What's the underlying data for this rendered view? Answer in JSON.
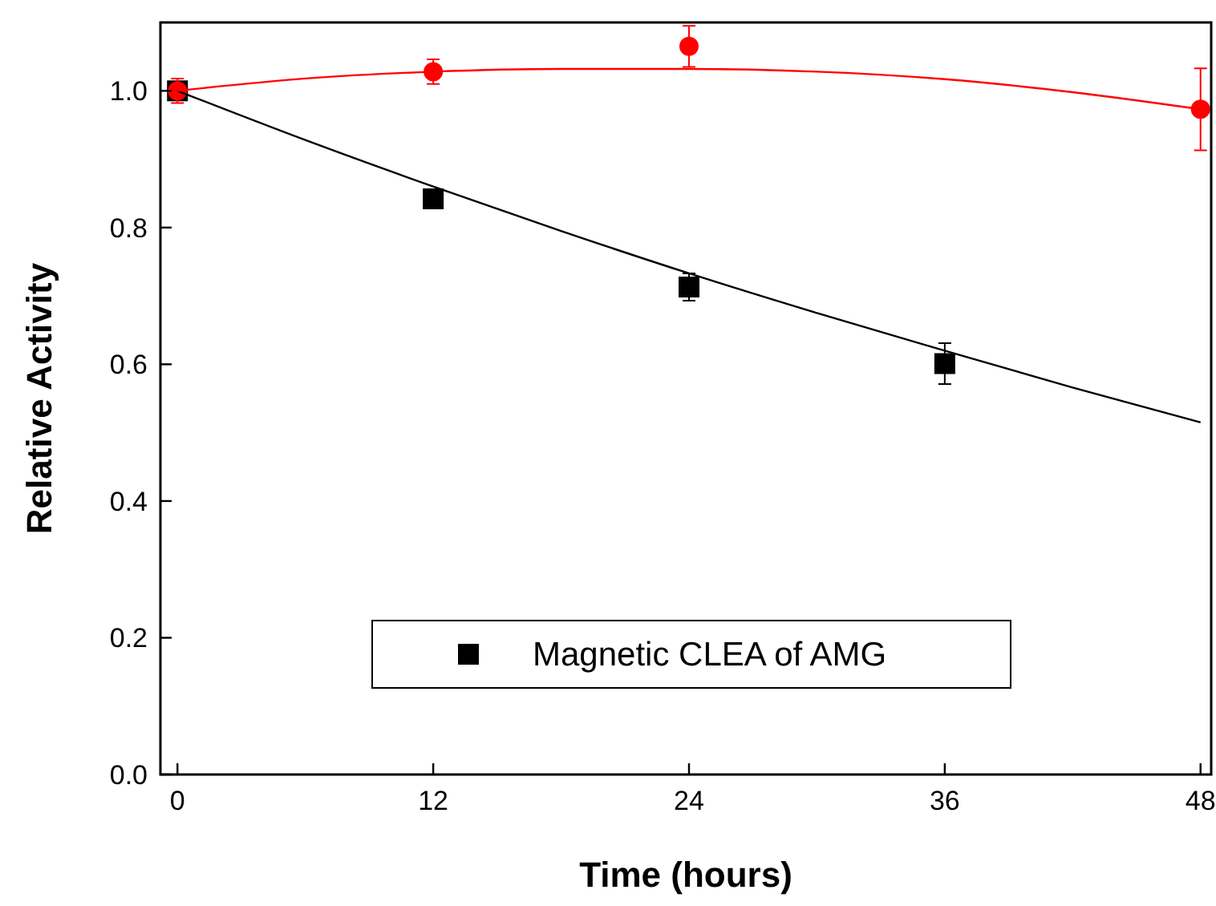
{
  "chart_data": {
    "type": "scatter",
    "xlabel": "Time (hours)",
    "ylabel": "Relative Activity",
    "xlim": [
      -0.8,
      48.5
    ],
    "ylim": [
      0,
      1.1
    ],
    "xticks": [
      0,
      12,
      24,
      36,
      48
    ],
    "yticks": [
      {
        "value": 0,
        "label": "0.0"
      },
      {
        "value": 0.2,
        "label": "0.2"
      },
      {
        "value": 0.4,
        "label": "0.4"
      },
      {
        "value": 0.6,
        "label": "0.6"
      },
      {
        "value": 0.8,
        "label": "0.8"
      },
      {
        "value": 1.0,
        "label": "1.0"
      }
    ],
    "legend": "bottom",
    "grid": false,
    "series": [
      {
        "name": "Magnetic CLEA of AMG",
        "marker": "square",
        "color": "#000000",
        "x": [
          0,
          12,
          24,
          36
        ],
        "values": [
          1.0,
          0.842,
          0.713,
          0.601
        ],
        "errors": [
          null,
          null,
          0.02,
          0.03
        ]
      },
      {
        "marker": "circle",
        "color": "#ff0000",
        "x": [
          0,
          12,
          24,
          48
        ],
        "values": [
          1.0,
          1.028,
          1.065,
          0.973
        ],
        "errors": [
          0.018,
          0.018,
          0.03,
          0.06
        ]
      },
      {
        "type": "line",
        "marker": "none",
        "color": "#000000",
        "x": [
          0,
          6,
          12,
          18,
          24,
          30,
          36,
          42,
          48
        ],
        "values": [
          1.0,
          0.928,
          0.86,
          0.795,
          0.733,
          0.675,
          0.62,
          0.566,
          0.515
        ]
      },
      {
        "type": "line",
        "marker": "none",
        "color": "#ff0000",
        "x": [
          0,
          6,
          12,
          18,
          24,
          30,
          36,
          42,
          48
        ],
        "values": [
          1.0,
          1.018,
          1.028,
          1.032,
          1.032,
          1.028,
          1.017,
          0.998,
          0.973
        ]
      }
    ]
  }
}
